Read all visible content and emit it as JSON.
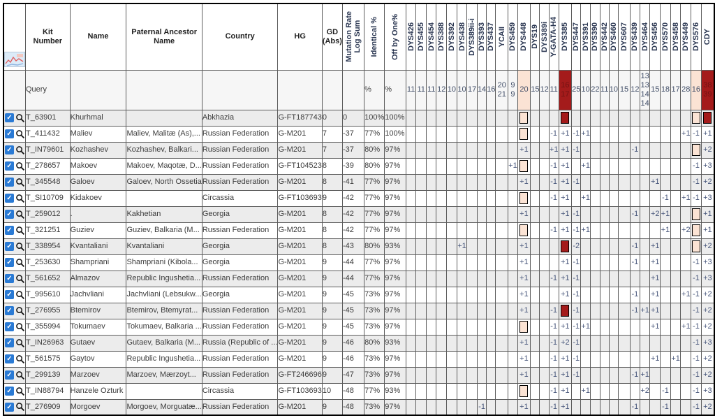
{
  "table": {
    "corner_icon": "image-thumbnail-icon",
    "fixed_headers": [
      "Kit\nNumber",
      "Name",
      "Paternal Ancestor\nName",
      "Country",
      "HG",
      "GD\n(Abs)"
    ],
    "rotated_headers": [
      "Mutation Rate\nLog Sum",
      "Identical %",
      "Off by One%"
    ],
    "markers": [
      "DYS426",
      "DYS455",
      "DYS454",
      "DYS388",
      "DYS392",
      "DYS438",
      "DYS389ii-i",
      "DYS393",
      "DYS437",
      "YCAII",
      "DYS459",
      "DYS448",
      "DYS19",
      "DYS389i",
      "Y-GATA-H4",
      "DYS385",
      "DYS447",
      "DYS391",
      "DYS390",
      "DYS442",
      "DYS460",
      "DYS607",
      "DYS439",
      "DYS464",
      "DYS456",
      "DYS570",
      "DYS458",
      "DYS449",
      "DYS576",
      "CDY"
    ],
    "colors": {
      "highlight_pink": "#fbe3d4",
      "highlight_red": "#a41b1b",
      "row_alt_gray": "#ececec",
      "checkbox_blue": "#2a7ad4"
    },
    "query": {
      "label": "Query",
      "identical_pct": "%",
      "off_by_one_pct": "%",
      "values": [
        "11",
        "11",
        "11",
        "12",
        "10",
        "10",
        "17",
        "14",
        "16",
        [
          "20",
          "21"
        ],
        [
          "9",
          "9"
        ],
        "20",
        "15",
        "12",
        "11",
        [
          "16",
          "17"
        ],
        "25",
        "10",
        "22",
        "11",
        "10",
        "15",
        "12",
        [
          "13",
          "13",
          "14",
          "14"
        ],
        "15",
        "18",
        "17",
        "28",
        "16",
        [
          "38",
          "39"
        ]
      ],
      "highlights": {
        "DYS448": "pink",
        "DYS385": "red",
        "DYS576": "pink",
        "CDY": "red"
      }
    },
    "rows": [
      {
        "kit": "T_63901",
        "name": "Khurhmal",
        "ancestor": "",
        "country": "Abkhazia",
        "hg": "G-FT187743",
        "gd": "0",
        "mutation_rate_log_sum": "0",
        "identical_pct": "100%",
        "off_by_one_pct": "100%",
        "checkbox_checked": true,
        "marker_values": {},
        "marker_highlights": {
          "DYS448": "pink",
          "DYS385": "red",
          "DYS576": "pink",
          "CDY": "red"
        }
      },
      {
        "kit": "T_411432",
        "name": "Maliev",
        "ancestor": "Maliev, Malitæ (As),...",
        "country": "Russian Federation",
        "hg": "G-M201",
        "gd": "7",
        "mutation_rate_log_sum": "-37",
        "identical_pct": "77%",
        "off_by_one_pct": "100%",
        "checkbox_checked": true,
        "marker_values": {
          "Y-GATA-H4": "-1",
          "DYS385": "+1",
          "DYS447": "-1",
          "DYS391": "+1",
          "DYS449": "+1",
          "DYS576": "-1",
          "CDY": "+1"
        },
        "marker_highlights": {
          "DYS448": "pink"
        }
      },
      {
        "kit": "T_IN79601",
        "name": "Kozhashev",
        "ancestor": "Kozhashev, Balkari...",
        "country": "Russian Federation",
        "hg": "G-M201",
        "gd": "7",
        "mutation_rate_log_sum": "-37",
        "identical_pct": "80%",
        "off_by_one_pct": "97%",
        "checkbox_checked": true,
        "marker_values": {
          "DYS448": "+1",
          "Y-GATA-H4": "+1",
          "DYS385": "+1",
          "DYS447": "-1",
          "DYS439": "-1",
          "CDY": "+2"
        },
        "marker_highlights": {
          "DYS576": "pink"
        }
      },
      {
        "kit": "T_278657",
        "name": "Makoev",
        "ancestor": "Makoev, Maqotæ, D...",
        "country": "Russian Federation",
        "hg": "G-FT104523",
        "gd": "8",
        "mutation_rate_log_sum": "-39",
        "identical_pct": "80%",
        "off_by_one_pct": "97%",
        "checkbox_checked": true,
        "marker_values": {
          "DYS459": "+1",
          "Y-GATA-H4": "-1",
          "DYS385": "+1",
          "DYS391": "+1",
          "DYS576": "-1",
          "CDY": "+3"
        },
        "marker_highlights": {
          "DYS448": "pink"
        }
      },
      {
        "kit": "T_345548",
        "name": "Galoev",
        "ancestor": "Galoev, North Ossetia",
        "country": "Russian Federation",
        "hg": "G-M201",
        "gd": "8",
        "mutation_rate_log_sum": "-41",
        "identical_pct": "77%",
        "off_by_one_pct": "97%",
        "checkbox_checked": true,
        "marker_values": {
          "DYS448": "+1",
          "Y-GATA-H4": "-1",
          "DYS385": "+1",
          "DYS447": "-1",
          "DYS456": "+1",
          "DYS576": "-1",
          "CDY": "+2"
        },
        "marker_highlights": {}
      },
      {
        "kit": "T_SI10709",
        "name": "Kidakoev",
        "ancestor": "",
        "country": "Circassia",
        "hg": "G-FT103693",
        "gd": "9",
        "mutation_rate_log_sum": "-42",
        "identical_pct": "77%",
        "off_by_one_pct": "97%",
        "checkbox_checked": true,
        "marker_values": {
          "Y-GATA-H4": "-1",
          "DYS385": "+1",
          "DYS391": "+1",
          "DYS570": "-1",
          "DYS449": "+1",
          "DYS576": "-1",
          "CDY": "+3"
        },
        "marker_highlights": {
          "DYS448": "pink"
        }
      },
      {
        "kit": "T_259012",
        "name": ".",
        "ancestor": "Kakhetian",
        "country": "Georgia",
        "hg": "G-M201",
        "gd": "8",
        "mutation_rate_log_sum": "-42",
        "identical_pct": "77%",
        "off_by_one_pct": "97%",
        "checkbox_checked": true,
        "marker_values": {
          "DYS448": "+1",
          "DYS385": "+1",
          "DYS447": "-1",
          "DYS439": "-1",
          "DYS456": "+2",
          "DYS570": "+1",
          "CDY": "+1"
        },
        "marker_highlights": {
          "DYS576": "pink"
        }
      },
      {
        "kit": "T_321251",
        "name": "Guziev",
        "ancestor": "Guziev, Balkaria (M...",
        "country": "Russian Federation",
        "hg": "G-M201",
        "gd": "8",
        "mutation_rate_log_sum": "-42",
        "identical_pct": "77%",
        "off_by_one_pct": "97%",
        "checkbox_checked": true,
        "marker_values": {
          "Y-GATA-H4": "-1",
          "DYS385": "+1",
          "DYS447": "-1",
          "DYS391": "+1",
          "DYS570": "+1",
          "DYS449": "+2",
          "CDY": "+1"
        },
        "marker_highlights": {
          "DYS448": "pink",
          "DYS576": "pink"
        }
      },
      {
        "kit": "T_338954",
        "name": "Kvantaliani",
        "ancestor": "Kvantaliani",
        "country": "Georgia",
        "hg": "G-M201",
        "gd": "8",
        "mutation_rate_log_sum": "-43",
        "identical_pct": "80%",
        "off_by_one_pct": "93%",
        "checkbox_checked": true,
        "marker_values": {
          "DYS438": "+1",
          "DYS448": "+1",
          "DYS447": "-2",
          "DYS439": "-1",
          "DYS456": "+1",
          "CDY": "+2"
        },
        "marker_highlights": {
          "DYS385": "red",
          "DYS576": "pink"
        }
      },
      {
        "kit": "T_253630",
        "name": "Shampriani",
        "ancestor": "Shampriani (Kibola...",
        "country": "Georgia",
        "hg": "G-M201",
        "gd": "9",
        "mutation_rate_log_sum": "-44",
        "identical_pct": "77%",
        "off_by_one_pct": "97%",
        "checkbox_checked": true,
        "marker_values": {
          "DYS448": "+1",
          "DYS385": "+1",
          "DYS447": "-1",
          "DYS439": "-1",
          "DYS456": "+1",
          "DYS576": "-1",
          "CDY": "+3"
        },
        "marker_highlights": {}
      },
      {
        "kit": "T_561652",
        "name": "Almazov",
        "ancestor": "Republic Ingushetia...",
        "country": "Russian Federation",
        "hg": "G-M201",
        "gd": "9",
        "mutation_rate_log_sum": "-44",
        "identical_pct": "77%",
        "off_by_one_pct": "97%",
        "checkbox_checked": true,
        "marker_values": {
          "DYS448": "+1",
          "Y-GATA-H4": "-1",
          "DYS385": "+1",
          "DYS447": "-1",
          "DYS456": "+1",
          "DYS576": "-1",
          "CDY": "+3"
        },
        "marker_highlights": {}
      },
      {
        "kit": "T_995610",
        "name": "Jachvliani",
        "ancestor": "Jachvliani (Lebsukw...",
        "country": "Georgia",
        "hg": "G-M201",
        "gd": "9",
        "mutation_rate_log_sum": "-45",
        "identical_pct": "73%",
        "off_by_one_pct": "97%",
        "checkbox_checked": true,
        "marker_values": {
          "DYS448": "+1",
          "DYS385": "+1",
          "DYS447": "-1",
          "DYS439": "-1",
          "DYS456": "+1",
          "DYS449": "+1",
          "DYS576": "-1",
          "CDY": "+2"
        },
        "marker_highlights": {}
      },
      {
        "kit": "T_276955",
        "name": "Btemirov",
        "ancestor": "Btemirov, Btemyrat...",
        "country": "Russian Federation",
        "hg": "G-M201",
        "gd": "9",
        "mutation_rate_log_sum": "-45",
        "identical_pct": "73%",
        "off_by_one_pct": "97%",
        "checkbox_checked": true,
        "marker_values": {
          "DYS448": "+1",
          "Y-GATA-H4": "-1",
          "DYS447": "-1",
          "DYS439": "-1",
          "DYS464": "+1",
          "DYS456": "+1",
          "DYS576": "-1",
          "CDY": "+2"
        },
        "marker_highlights": {
          "DYS385": "red"
        }
      },
      {
        "kit": "T_355994",
        "name": "Tokumaev",
        "ancestor": "Tokumaev, Balkaria ...",
        "country": "Russian Federation",
        "hg": "G-M201",
        "gd": "9",
        "mutation_rate_log_sum": "-45",
        "identical_pct": "73%",
        "off_by_one_pct": "97%",
        "checkbox_checked": true,
        "marker_values": {
          "Y-GATA-H4": "-1",
          "DYS385": "+1",
          "DYS447": "-1",
          "DYS391": "+1",
          "DYS456": "+1",
          "DYS449": "+1",
          "DYS576": "-1",
          "CDY": "+2"
        },
        "marker_highlights": {
          "DYS448": "pink"
        }
      },
      {
        "kit": "T_IN26963",
        "name": "Gutaev",
        "ancestor": "Gutaev, Balkaria (M...",
        "country": "Russia (Republic of ...",
        "hg": "G-M201",
        "gd": "9",
        "mutation_rate_log_sum": "-46",
        "identical_pct": "80%",
        "off_by_one_pct": "93%",
        "checkbox_checked": true,
        "marker_values": {
          "DYS448": "+1",
          "Y-GATA-H4": "-1",
          "DYS385": "+2",
          "DYS447": "-1",
          "DYS576": "-1",
          "CDY": "+3"
        },
        "marker_highlights": {}
      },
      {
        "kit": "T_561575",
        "name": "Gaytov",
        "ancestor": "Republic Ingushetia...",
        "country": "Russian Federation",
        "hg": "G-M201",
        "gd": "9",
        "mutation_rate_log_sum": "-46",
        "identical_pct": "73%",
        "off_by_one_pct": "97%",
        "checkbox_checked": true,
        "marker_values": {
          "DYS448": "+1",
          "Y-GATA-H4": "-1",
          "DYS385": "+1",
          "DYS447": "-1",
          "DYS456": "+1",
          "DYS458": "+1",
          "DYS576": "-1",
          "CDY": "+2"
        },
        "marker_highlights": {}
      },
      {
        "kit": "T_299139",
        "name": "Marzoev",
        "ancestor": "Marzoev, Mærzoyt...",
        "country": "Russian Federation",
        "hg": "G-FT246696",
        "gd": "9",
        "mutation_rate_log_sum": "-47",
        "identical_pct": "73%",
        "off_by_one_pct": "97%",
        "checkbox_checked": true,
        "marker_values": {
          "DYS448": "+1",
          "Y-GATA-H4": "-1",
          "DYS385": "+1",
          "DYS447": "-1",
          "DYS439": "-1",
          "DYS464": "+1",
          "DYS576": "-1",
          "CDY": "+2"
        },
        "marker_highlights": {}
      },
      {
        "kit": "T_IN88794",
        "name": "Hanzele Ozturk",
        "ancestor": "",
        "country": "Circassia",
        "hg": "G-FT103693",
        "gd": "10",
        "mutation_rate_log_sum": "-48",
        "identical_pct": "77%",
        "off_by_one_pct": "93%",
        "checkbox_checked": true,
        "marker_values": {
          "Y-GATA-H4": "-1",
          "DYS385": "+1",
          "DYS391": "+1",
          "DYS464": "+2",
          "DYS570": "-1",
          "DYS576": "-1",
          "CDY": "+3"
        },
        "marker_highlights": {
          "DYS448": "pink"
        }
      },
      {
        "kit": "T_276909",
        "name": "Morgoev",
        "ancestor": "Morgoev, Morguatæ...",
        "country": "Russian Federation",
        "hg": "G-M201",
        "gd": "9",
        "mutation_rate_log_sum": "-48",
        "identical_pct": "73%",
        "off_by_one_pct": "97%",
        "checkbox_checked": true,
        "marker_values": {
          "DYS393": "-1",
          "DYS448": "+1",
          "Y-GATA-H4": "-1",
          "DYS385": "+1",
          "DYS439": "-1",
          "DYS570": "-1",
          "DYS576": "-1",
          "CDY": "+2"
        },
        "marker_highlights": {}
      }
    ]
  }
}
